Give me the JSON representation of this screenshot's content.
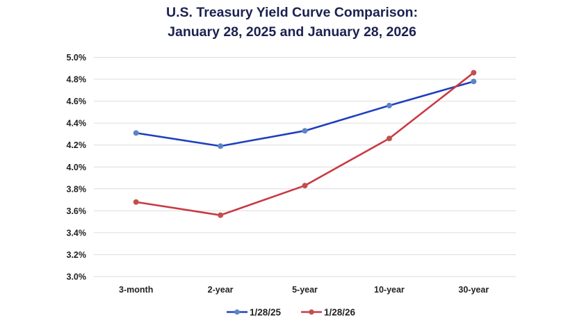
{
  "chart_data": {
    "type": "line",
    "title_line1": "U.S. Treasury Yield Curve Comparison:",
    "title_line2": "January 28, 2025 and January 28, 2026",
    "xlabel": "",
    "ylabel": "",
    "categories": [
      "3-month",
      "2-year",
      "5-year",
      "10-year",
      "30-year"
    ],
    "ylim": [
      3.0,
      5.0
    ],
    "yticks": [
      3.0,
      3.2,
      3.4,
      3.6,
      3.8,
      4.0,
      4.2,
      4.4,
      4.6,
      4.8,
      5.0
    ],
    "ytick_labels": [
      "3.0%",
      "3.2%",
      "3.4%",
      "3.6%",
      "3.8%",
      "4.0%",
      "4.2%",
      "4.4%",
      "4.6%",
      "4.8%",
      "5.0%"
    ],
    "grid": "horizontal",
    "legend_position": "bottom",
    "series": [
      {
        "name": "1/28/25",
        "color": "#1f3fbf",
        "marker_color": "#5b86c5",
        "values": [
          4.31,
          4.19,
          4.33,
          4.56,
          4.78
        ]
      },
      {
        "name": "1/28/26",
        "color": "#c83a44",
        "marker_color": "#c0504d",
        "values": [
          3.68,
          3.56,
          3.83,
          4.26,
          4.86
        ]
      }
    ]
  }
}
